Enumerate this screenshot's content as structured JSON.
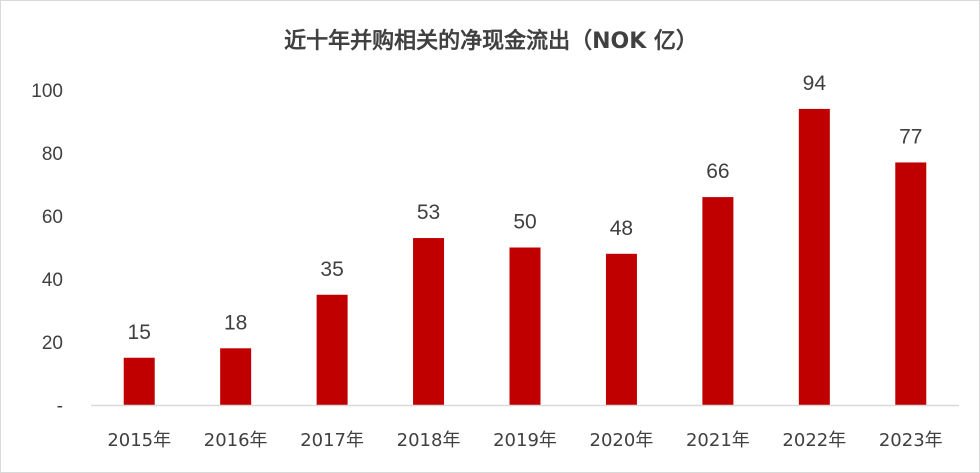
{
  "chart_data": {
    "type": "bar",
    "title": "近十年并购相关的净现金流出（NOK 亿）",
    "categories": [
      "2015年",
      "2016年",
      "2017年",
      "2018年",
      "2019年",
      "2020年",
      "2021年",
      "2022年",
      "2023年"
    ],
    "values": [
      15,
      18,
      35,
      53,
      50,
      48,
      66,
      94,
      77
    ],
    "ylim": [
      0,
      100
    ],
    "yticks": [
      0,
      20,
      40,
      60,
      80,
      100
    ],
    "ytick_labels": [
      "-",
      "20",
      "40",
      "60",
      "80",
      "100"
    ],
    "xlabel": "",
    "ylabel": "",
    "grid": false,
    "legend": "none",
    "bar_color": "#c00000",
    "axis_color": "#d9d9d9",
    "text_color": "#404040"
  }
}
